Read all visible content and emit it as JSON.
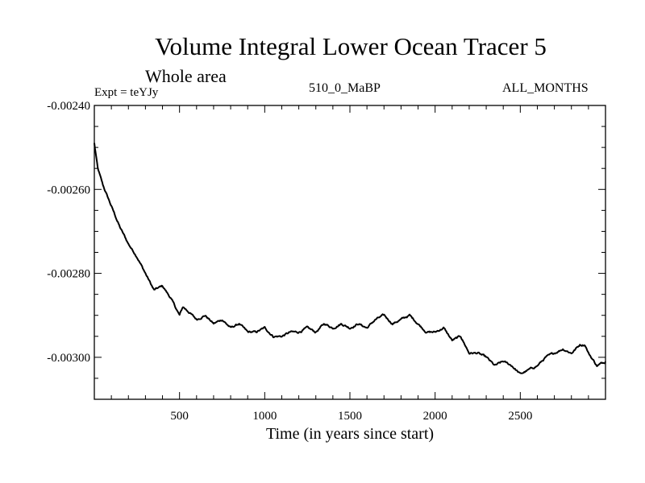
{
  "chart_data": {
    "type": "line",
    "title": "Volume Integral Lower Ocean Tracer 5",
    "subtitle": "Whole area",
    "expt_label": "Expt = teYJy",
    "run_label": "510_0_MaBP",
    "months_label": "ALL_MONTHS",
    "xlabel": "Time (in years since start)",
    "ylabel": "",
    "xlim": [
      0,
      3000
    ],
    "ylim": [
      -0.0031,
      -0.0024
    ],
    "x_ticks": [
      {
        "value": 500,
        "label": "500"
      },
      {
        "value": 1000,
        "label": "1000"
      },
      {
        "value": 1500,
        "label": "1500"
      },
      {
        "value": 2000,
        "label": "2000"
      },
      {
        "value": 2500,
        "label": "2500"
      }
    ],
    "y_ticks": [
      {
        "value": -0.0024,
        "label": "-0.00240"
      },
      {
        "value": -0.0026,
        "label": "-0.00260"
      },
      {
        "value": -0.0028,
        "label": "-0.00280"
      },
      {
        "value": -0.003,
        "label": "-0.00300"
      }
    ],
    "series": [
      {
        "name": "Lower Ocean Tracer 5",
        "color": "#000000",
        "x": [
          0,
          20,
          50,
          100,
          150,
          200,
          250,
          300,
          350,
          400,
          450,
          500,
          520,
          550,
          600,
          650,
          700,
          750,
          800,
          850,
          900,
          950,
          1000,
          1050,
          1100,
          1150,
          1200,
          1250,
          1300,
          1350,
          1400,
          1450,
          1500,
          1550,
          1600,
          1650,
          1700,
          1750,
          1800,
          1850,
          1900,
          1950,
          2000,
          2050,
          2100,
          2150,
          2200,
          2250,
          2300,
          2350,
          2400,
          2450,
          2500,
          2550,
          2600,
          2650,
          2700,
          2750,
          2800,
          2850,
          2880,
          2900,
          2950,
          3000
        ],
        "y": [
          -0.00249,
          -0.00255,
          -0.00259,
          -0.00264,
          -0.00269,
          -0.00273,
          -0.00276,
          -0.0028,
          -0.00284,
          -0.00283,
          -0.00286,
          -0.0029,
          -0.00288,
          -0.00289,
          -0.00291,
          -0.0029,
          -0.00292,
          -0.00291,
          -0.00293,
          -0.00292,
          -0.00294,
          -0.00294,
          -0.00293,
          -0.00295,
          -0.00295,
          -0.00294,
          -0.00294,
          -0.00293,
          -0.00294,
          -0.00292,
          -0.00293,
          -0.00292,
          -0.00293,
          -0.00292,
          -0.00293,
          -0.00291,
          -0.0029,
          -0.00292,
          -0.00291,
          -0.0029,
          -0.00292,
          -0.00294,
          -0.00294,
          -0.00293,
          -0.00296,
          -0.00295,
          -0.00299,
          -0.00299,
          -0.003,
          -0.00302,
          -0.00301,
          -0.00302,
          -0.00304,
          -0.00303,
          -0.00302,
          -0.003,
          -0.00299,
          -0.00298,
          -0.00299,
          -0.00297,
          -0.00297,
          -0.00299,
          -0.00302,
          -0.00301
        ]
      }
    ]
  }
}
